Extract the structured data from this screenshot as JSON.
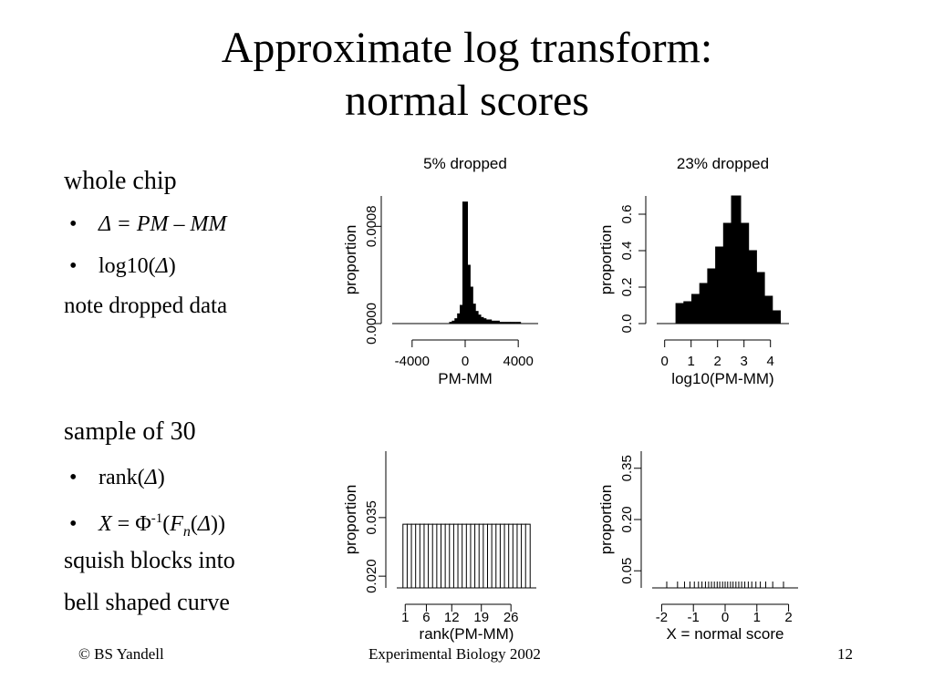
{
  "slide": {
    "title_line1": "Approximate log transform:",
    "title_line2": "normal scores",
    "left": {
      "heading1": "whole chip",
      "bullets1": [
        {
          "symbol": "Δ",
          "rest": " = PM – MM"
        },
        {
          "prefix": "log10(",
          "symbol": "Δ",
          "suffix": ")"
        }
      ],
      "note1": "note dropped data",
      "heading2": "sample of 30",
      "bullets2": [
        {
          "prefix": "rank(",
          "symbol": "Δ",
          "suffix": ")"
        },
        {
          "x": "X",
          "eq": " = Φ",
          "sup": "-1",
          "open": "(",
          "f": "F",
          "n": "n",
          "open2": "(",
          "symbol": "Δ",
          "close": "))"
        }
      ],
      "note2a": "squish blocks into",
      "note2b": "bell shaped curve"
    },
    "footer": {
      "left": "© BS Yandell",
      "center": "Experimental Biology 2002",
      "right": "12"
    },
    "bullet_glyph": "•"
  },
  "chart_data": [
    {
      "type": "bar",
      "title": "5% dropped",
      "xlabel": "PM-MM",
      "ylabel": "proportion",
      "x_ticks": [
        "-4000",
        "0",
        "4000"
      ],
      "y_ticks": [
        "0.0000",
        "0.0008"
      ],
      "xlim": [
        -5500,
        5500
      ],
      "ylim": [
        0,
        0.00105
      ],
      "bins": [
        {
          "x": -1000,
          "v": 1e-05
        },
        {
          "x": -800,
          "v": 2e-05
        },
        {
          "x": -600,
          "v": 4e-05
        },
        {
          "x": -400,
          "v": 8e-05
        },
        {
          "x": -200,
          "v": 0.00015
        },
        {
          "x": 0,
          "v": 0.001
        },
        {
          "x": 200,
          "v": 0.00048
        },
        {
          "x": 400,
          "v": 0.0003
        },
        {
          "x": 600,
          "v": 0.00016
        },
        {
          "x": 800,
          "v": 0.0001
        },
        {
          "x": 1000,
          "v": 7e-05
        },
        {
          "x": 1200,
          "v": 5e-05
        },
        {
          "x": 1400,
          "v": 4e-05
        },
        {
          "x": 1600,
          "v": 3e-05
        },
        {
          "x": 1800,
          "v": 3e-05
        },
        {
          "x": 2000,
          "v": 2e-05
        },
        {
          "x": 2400,
          "v": 2e-05
        },
        {
          "x": 2800,
          "v": 1e-05
        },
        {
          "x": 3200,
          "v": 1e-05
        },
        {
          "x": 3600,
          "v": 1e-05
        },
        {
          "x": 4000,
          "v": 1e-05
        }
      ]
    },
    {
      "type": "bar",
      "title": "23% dropped",
      "xlabel": "log10(PM-MM)",
      "ylabel": "proportion",
      "x_ticks": [
        "0",
        "1",
        "2",
        "3",
        "4"
      ],
      "y_ticks": [
        "0.0",
        "0.2",
        "0.4",
        "0.6"
      ],
      "xlim": [
        -0.3,
        4.7
      ],
      "ylim": [
        0,
        0.7
      ],
      "bins": [
        {
          "x": 0.6,
          "v": 0.11
        },
        {
          "x": 0.9,
          "v": 0.12
        },
        {
          "x": 1.2,
          "v": 0.16
        },
        {
          "x": 1.5,
          "v": 0.22
        },
        {
          "x": 1.8,
          "v": 0.3
        },
        {
          "x": 2.1,
          "v": 0.42
        },
        {
          "x": 2.4,
          "v": 0.55
        },
        {
          "x": 2.7,
          "v": 0.7
        },
        {
          "x": 3.0,
          "v": 0.55
        },
        {
          "x": 3.3,
          "v": 0.4
        },
        {
          "x": 3.6,
          "v": 0.28
        },
        {
          "x": 3.9,
          "v": 0.15
        },
        {
          "x": 4.2,
          "v": 0.07
        }
      ]
    },
    {
      "type": "bar",
      "title": "",
      "xlabel": "rank(PM-MM)",
      "ylabel": "proportion",
      "x_ticks": [
        "1",
        "6",
        "12",
        "19",
        "26"
      ],
      "y_ticks": [
        "0.020",
        "0.035"
      ],
      "xlim": [
        -1,
        32
      ],
      "ylim": [
        0.017,
        0.052
      ],
      "bins": [
        {
          "x": 1,
          "v": 0.0333
        },
        {
          "x": 2,
          "v": 0.0333
        },
        {
          "x": 3,
          "v": 0.0333
        },
        {
          "x": 4,
          "v": 0.0333
        },
        {
          "x": 5,
          "v": 0.0333
        },
        {
          "x": 6,
          "v": 0.0333
        },
        {
          "x": 7,
          "v": 0.0333
        },
        {
          "x": 8,
          "v": 0.0333
        },
        {
          "x": 9,
          "v": 0.0333
        },
        {
          "x": 10,
          "v": 0.0333
        },
        {
          "x": 11,
          "v": 0.0333
        },
        {
          "x": 12,
          "v": 0.0333
        },
        {
          "x": 13,
          "v": 0.0333
        },
        {
          "x": 14,
          "v": 0.0333
        },
        {
          "x": 15,
          "v": 0.0333
        },
        {
          "x": 16,
          "v": 0.0333
        },
        {
          "x": 17,
          "v": 0.0333
        },
        {
          "x": 18,
          "v": 0.0333
        },
        {
          "x": 19,
          "v": 0.0333
        },
        {
          "x": 20,
          "v": 0.0333
        },
        {
          "x": 21,
          "v": 0.0333
        },
        {
          "x": 22,
          "v": 0.0333
        },
        {
          "x": 23,
          "v": 0.0333
        },
        {
          "x": 24,
          "v": 0.0333
        },
        {
          "x": 25,
          "v": 0.0333
        },
        {
          "x": 26,
          "v": 0.0333
        },
        {
          "x": 27,
          "v": 0.0333
        },
        {
          "x": 28,
          "v": 0.0333
        },
        {
          "x": 29,
          "v": 0.0333
        },
        {
          "x": 30,
          "v": 0.0333
        }
      ]
    },
    {
      "type": "scatter",
      "title": "",
      "xlabel": "X = normal score",
      "ylabel": "proportion",
      "x_ticks": [
        "-2",
        "-1",
        "0",
        "1",
        "2"
      ],
      "y_ticks": [
        "0.05",
        "0.20",
        "0.35"
      ],
      "xlim": [
        -2.3,
        2.3
      ],
      "ylim": [
        0.0,
        0.4
      ],
      "rug": [
        -1.84,
        -1.5,
        -1.28,
        -1.11,
        -0.97,
        -0.84,
        -0.73,
        -0.62,
        -0.52,
        -0.43,
        -0.34,
        -0.25,
        -0.17,
        -0.08,
        0.0,
        0.08,
        0.17,
        0.25,
        0.34,
        0.43,
        0.52,
        0.62,
        0.73,
        0.84,
        0.97,
        1.11,
        1.28,
        1.5,
        1.84
      ]
    }
  ]
}
